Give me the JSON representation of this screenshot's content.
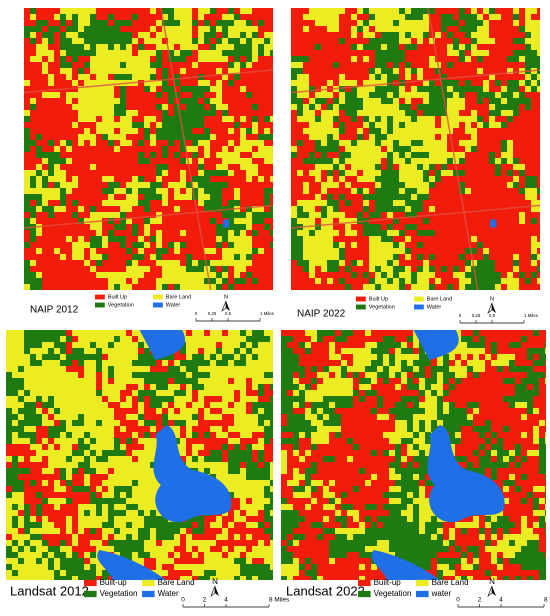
{
  "panels": [
    {
      "title": "NAIP 2012",
      "legend": [
        "Built Up",
        "Vegetation",
        "Bare Land",
        "Water"
      ],
      "north": "N",
      "scale_labels": [
        "0",
        "0.25",
        "0.5",
        "1 Miles"
      ]
    },
    {
      "title": "NAIP 2022",
      "legend": [
        "Built Up",
        "Vegetation",
        "Bare Land",
        "Water"
      ],
      "north": "N",
      "scale_labels": [
        "0",
        "0.25",
        "0.5",
        "1 Miles"
      ]
    },
    {
      "title": "Landsat 2012",
      "legend": [
        "Built-up",
        "Vegetation",
        "Bare Land",
        "Water"
      ],
      "north": "N",
      "scale_labels": [
        "0",
        "2",
        "4",
        "8 Miles"
      ]
    },
    {
      "title": "Landsat 2022",
      "legend": [
        "Built-up",
        "Vegetation",
        "Bare Land",
        "water"
      ],
      "north": "N",
      "scale_labels": [
        "0",
        "2",
        "4",
        "8 Miles"
      ]
    }
  ]
}
